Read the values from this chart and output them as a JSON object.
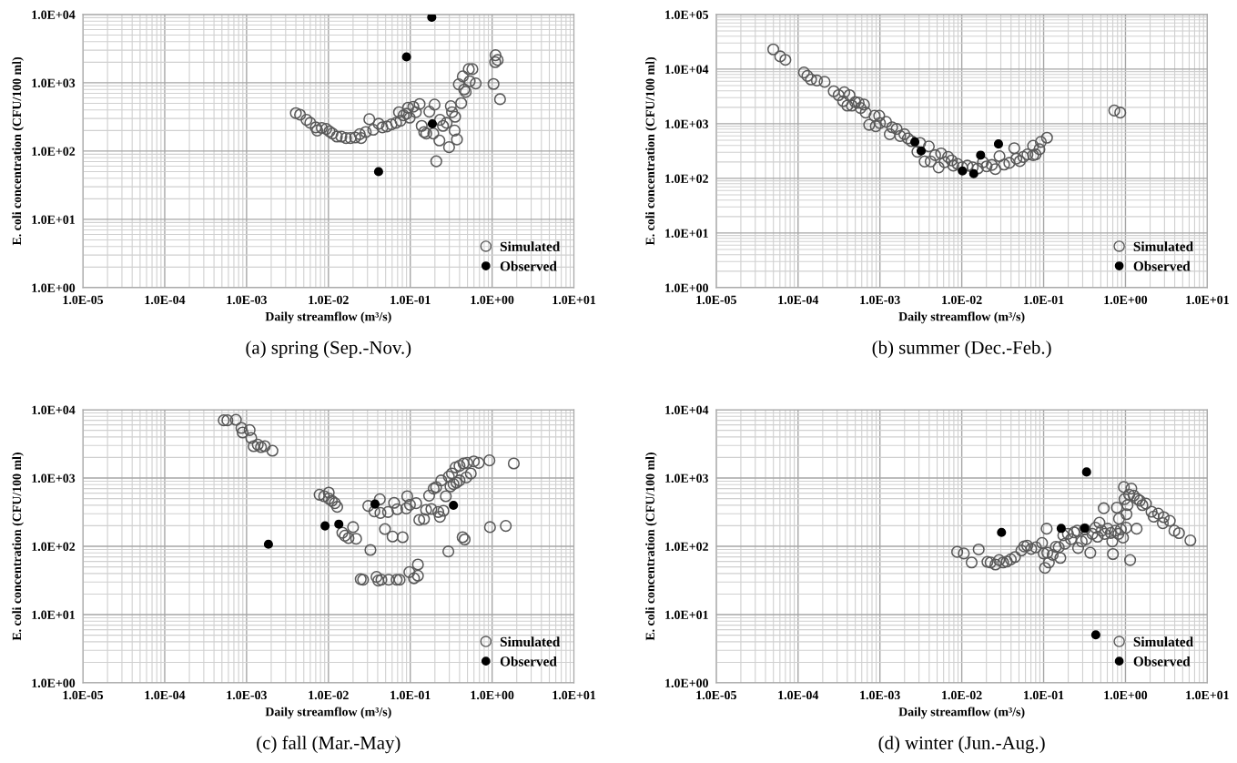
{
  "chart_data": [
    {
      "type": "scatter",
      "title": "(a) spring (Sep.-Nov.)",
      "xlabel": "Daily streamflow (m³/s)",
      "ylabel": "E. coli concentration (CFU/100 ml)",
      "log": "xy",
      "grid": true,
      "legend": "bottom right",
      "marker": "circle",
      "xlim": [
        1e-05,
        10
      ],
      "ylim": [
        1,
        10000
      ],
      "xticks": [
        {
          "value": 1e-05,
          "label": "1.0E-05"
        },
        {
          "value": 0.0001,
          "label": "1.0E-04"
        },
        {
          "value": 0.001,
          "label": "1.0E-03"
        },
        {
          "value": 0.01,
          "label": "1.0E-02"
        },
        {
          "value": 0.1,
          "label": "1.0E-01"
        },
        {
          "value": 1,
          "label": "1.0E+00"
        },
        {
          "value": 10,
          "label": "1.0E+01"
        }
      ],
      "yticks": [
        {
          "value": 1,
          "label": "1.0E+00"
        },
        {
          "value": 10,
          "label": "1.0E+01"
        },
        {
          "value": 100,
          "label": "1.0E+02"
        },
        {
          "value": 1000,
          "label": "1.0E+03"
        },
        {
          "value": 10000,
          "label": "1.0E+04"
        }
      ],
      "series": [
        {
          "name": "Simulated",
          "color": "#595959",
          "x": [
            0.004,
            0.0045,
            0.0054,
            0.006,
            0.007,
            0.0073,
            0.0083,
            0.0094,
            0.0103,
            0.0112,
            0.0127,
            0.0144,
            0.0164,
            0.0186,
            0.0212,
            0.0241,
            0.0251,
            0.0316,
            0.0286,
            0.0353,
            0.0412,
            0.0456,
            0.0519,
            0.0589,
            0.067,
            0.0729,
            0.076,
            0.0829,
            0.0903,
            0.0942,
            0.0984,
            0.109,
            0.117,
            0.13,
            0.138,
            0.148,
            0.157,
            0.171,
            0.198,
            0.191,
            0.208,
            0.227,
            0.231,
            0.251,
            0.278,
            0.298,
            0.313,
            0.324,
            0.348,
            0.353,
            0.372,
            0.392,
            0.419,
            0.438,
            0.456,
            0.476,
            0.519,
            0.532,
            0.574,
            0.631,
            1.04,
            1.1,
            1.09,
            1.17,
            1.25
          ],
          "values": [
            360,
            341,
            287,
            259,
            222,
            200,
            218,
            211,
            194,
            181,
            163,
            163,
            155,
            155,
            158,
            177,
            155,
            293,
            190,
            205,
            251,
            222,
            229,
            246,
            259,
            371,
            278,
            334,
            352,
            432,
            308,
            446,
            371,
            489,
            234,
            190,
            181,
            378,
            479,
            181,
            71,
            143,
            287,
            234,
            259,
            114,
            455,
            371,
            200,
            318,
            148,
            950,
            504,
            1240,
            798,
            736,
            1585,
            1052,
            1585,
            980,
            960,
            2535,
            2005,
            2154,
            575
          ]
        },
        {
          "name": "Observed",
          "color": "#000000",
          "x": [
            0.183,
            0.09,
            0.186,
            0.041
          ],
          "values": [
            9100,
            2390,
            251,
            50
          ]
        }
      ]
    },
    {
      "type": "scatter",
      "title": "(b) summer (Dec.-Feb.)",
      "xlabel": "Daily streamflow (m³/s)",
      "ylabel": "E. coli concentration (CFU/100 ml)",
      "log": "xy",
      "grid": true,
      "legend": "bottom right",
      "marker": "circle",
      "xlim": [
        1e-05,
        10
      ],
      "ylim": [
        1,
        100000
      ],
      "xticks": [
        {
          "value": 1e-05,
          "label": "1.0E-05"
        },
        {
          "value": 0.0001,
          "label": "1.0E-04"
        },
        {
          "value": 0.001,
          "label": "1.0E-03"
        },
        {
          "value": 0.01,
          "label": "1.0E-02"
        },
        {
          "value": 0.1,
          "label": "1.0E-01"
        },
        {
          "value": 1,
          "label": "1.0E+00"
        },
        {
          "value": 10,
          "label": "1.0E+01"
        }
      ],
      "yticks": [
        {
          "value": 1,
          "label": "1.0E+00"
        },
        {
          "value": 10,
          "label": "1.0E+01"
        },
        {
          "value": 100,
          "label": "1.0E+02"
        },
        {
          "value": 1000,
          "label": "1.0E+03"
        },
        {
          "value": 10000,
          "label": "1.0E+04"
        },
        {
          "value": 100000,
          "label": "1.0E+05"
        }
      ],
      "series": [
        {
          "name": "Simulated",
          "color": "#595959",
          "x": [
            4.98e-05,
            6.05e-05,
            7e-05,
            0.000118,
            0.00013,
            0.000144,
            0.00017,
            0.000211,
            0.000273,
            0.000313,
            0.000367,
            0.000356,
            0.0004,
            0.000425,
            0.000455,
            0.0005,
            0.00055,
            0.00058,
            0.00064,
            0.00067,
            0.00074,
            0.00086,
            0.00089,
            0.00098,
            0.001,
            0.00119,
            0.00132,
            0.00141,
            0.0016,
            0.00177,
            0.00199,
            0.0022,
            0.00243,
            0.00287,
            0.0031,
            0.00352,
            0.00396,
            0.00417,
            0.00473,
            0.00522,
            0.0056,
            0.00618,
            0.00681,
            0.00752,
            0.00789,
            0.00889,
            0.0101,
            0.0117,
            0.0136,
            0.0157,
            0.0182,
            0.0201,
            0.0233,
            0.0257,
            0.0289,
            0.0329,
            0.0381,
            0.0438,
            0.0465,
            0.0512,
            0.0565,
            0.0635,
            0.0744,
            0.0744,
            0.0798,
            0.0889,
            0.0925,
            0.11,
            0.73,
            0.863
          ],
          "values": [
            22960,
            17100,
            14800,
            8690,
            7500,
            6470,
            6190,
            5850,
            3930,
            3340,
            3760,
            2600,
            2150,
            3340,
            2150,
            2490,
            2420,
            1940,
            2240,
            1600,
            957,
            1400,
            902,
            1400,
            1030,
            1080,
            643,
            862,
            802,
            597,
            643,
            539,
            480,
            308,
            446,
            204,
            385,
            204,
            266,
            159,
            287,
            198,
            247,
            213,
            171,
            184,
            159,
            171,
            159,
            152,
            198,
            166,
            176,
            148,
            255,
            179,
            192,
            357,
            230,
            207,
            247,
            274,
            266,
            395,
            274,
            342,
            466,
            555,
            1750,
            1600
          ]
        },
        {
          "name": "Observed",
          "color": "#000000",
          "x": [
            0.00267,
            0.00319,
            0.0102,
            0.014,
            0.017,
            0.0281
          ],
          "values": [
            466,
            318,
            137,
            122,
            266,
            426
          ]
        }
      ]
    },
    {
      "type": "scatter",
      "title": "(c) fall (Mar.-May)",
      "xlabel": "Daily streamflow (m³/s)",
      "ylabel": "E. coli concentration (CFU/100 ml)",
      "log": "xy",
      "grid": true,
      "legend": "bottom right",
      "marker": "circle",
      "xlim": [
        1e-05,
        10
      ],
      "ylim": [
        1,
        10000
      ],
      "xticks": [
        {
          "value": 1e-05,
          "label": "1.0E-05"
        },
        {
          "value": 0.0001,
          "label": "1.0E-04"
        },
        {
          "value": 0.001,
          "label": "1.0E-03"
        },
        {
          "value": 0.01,
          "label": "1.0E-02"
        },
        {
          "value": 0.1,
          "label": "1.0E-01"
        },
        {
          "value": 1,
          "label": "1.0E+00"
        },
        {
          "value": 10,
          "label": "1.0E+01"
        }
      ],
      "yticks": [
        {
          "value": 1,
          "label": "1.0E+00"
        },
        {
          "value": 10,
          "label": "1.0E+01"
        },
        {
          "value": 100,
          "label": "1.0E+02"
        },
        {
          "value": 1000,
          "label": "1.0E+03"
        },
        {
          "value": 10000,
          "label": "1.0E+04"
        }
      ],
      "series": [
        {
          "name": "Simulated",
          "color": "#595959",
          "x": [
            0.000526,
            0.000583,
            0.000741,
            0.000865,
            0.000895,
            0.00109,
            0.00114,
            0.00122,
            0.00137,
            0.0015,
            0.00167,
            0.00207,
            0.0078,
            0.00887,
            0.0101,
            0.0101,
            0.011,
            0.012,
            0.0128,
            0.0148,
            0.0159,
            0.0176,
            0.02,
            0.0218,
            0.0248,
            0.0265,
            0.0307,
            0.0326,
            0.0364,
            0.0387,
            0.0407,
            0.0425,
            0.0444,
            0.0432,
            0.0491,
            0.0535,
            0.0545,
            0.0608,
            0.0635,
            0.0681,
            0.0692,
            0.0741,
            0.0807,
            0.0918,
            0.0895,
            0.0991,
            0.0975,
            0.111,
            0.118,
            0.124,
            0.124,
            0.129,
            0.147,
            0.156,
            0.17,
            0.181,
            0.193,
            0.207,
            0.22,
            0.23,
            0.239,
            0.254,
            0.272,
            0.292,
            0.296,
            0.31,
            0.323,
            0.337,
            0.358,
            0.367,
            0.4,
            0.4,
            0.436,
            0.448,
            0.462,
            0.483,
            0.496,
            0.549,
            0.598,
            0.686,
            0.927,
            0.942,
            1.47,
            1.84
          ],
          "values": [
            6990,
            6990,
            7130,
            5410,
            4640,
            5040,
            3860,
            2930,
            3080,
            2840,
            2930,
            2510,
            570,
            541,
            612,
            499,
            464,
            428,
            378,
            158,
            143,
            132,
            191,
            129,
            33,
            32.4,
            390,
            88.5,
            325,
            35.6,
            31.5,
            489,
            32.4,
            308,
            179,
            318,
            32.4,
            139,
            433,
            32.4,
            349,
            32.4,
            136,
            541,
            359,
            406,
            41.9,
            34.1,
            428,
            54.1,
            37.1,
            244,
            251,
            342,
            552,
            352,
            699,
            736,
            318,
            270,
            921,
            331,
            541,
            84,
            1052,
            752,
            1166,
            815,
            1432,
            858,
            1507,
            921,
            136,
            1635,
            126,
            1021,
            1667,
            1166,
            1754,
            1667,
            1812,
            191,
            199,
            1635
          ]
        },
        {
          "name": "Observed",
          "color": "#000000",
          "x": [
            0.00185,
            0.0091,
            0.0134,
            0.0371,
            0.337
          ],
          "values": [
            107,
            199,
            211,
            415,
            398
          ]
        }
      ]
    },
    {
      "type": "scatter",
      "title": "(d) winter (Jun.-Aug.)",
      "xlabel": "Daily streamflow (m³/s)",
      "ylabel": "E. coli concentration (CFU/100 ml)",
      "log": "xy",
      "grid": true,
      "legend": "bottom right",
      "marker": "circle",
      "xlim": [
        1e-05,
        10
      ],
      "ylim": [
        1,
        10000
      ],
      "xticks": [
        {
          "value": 1e-05,
          "label": "1.0E-05"
        },
        {
          "value": 0.0001,
          "label": "1.0E-04"
        },
        {
          "value": 0.001,
          "label": "1.0E-03"
        },
        {
          "value": 0.01,
          "label": "1.0E-02"
        },
        {
          "value": 0.1,
          "label": "1.0E-01"
        },
        {
          "value": 1,
          "label": "1.0E+00"
        },
        {
          "value": 10,
          "label": "1.0E+01"
        }
      ],
      "yticks": [
        {
          "value": 1,
          "label": "1.0E+00"
        },
        {
          "value": 10,
          "label": "1.0E+01"
        },
        {
          "value": 100,
          "label": "1.0E+02"
        },
        {
          "value": 1000,
          "label": "1.0E+03"
        },
        {
          "value": 10000,
          "label": "1.0E+04"
        }
      ],
      "series": [
        {
          "name": "Simulated",
          "color": "#595959",
          "x": [
            0.00879,
            0.0106,
            0.0132,
            0.0161,
            0.0206,
            0.0225,
            0.0258,
            0.0286,
            0.032,
            0.0355,
            0.0397,
            0.0447,
            0.0535,
            0.0579,
            0.0631,
            0.0706,
            0.0804,
            0.0957,
            0.1,
            0.104,
            0.109,
            0.111,
            0.116,
            0.129,
            0.141,
            0.153,
            0.16,
            0.174,
            0.182,
            0.198,
            0.216,
            0.236,
            0.257,
            0.264,
            0.292,
            0.318,
            0.332,
            0.372,
            0.394,
            0.43,
            0.457,
            0.481,
            0.511,
            0.543,
            0.557,
            0.607,
            0.662,
            0.703,
            0.69,
            0.753,
            0.786,
            0.82,
            0.834,
            0.879,
            0.933,
            0.957,
            0.975,
            1.02,
            1.03,
            1.06,
            1.11,
            1.14,
            1.18,
            1.26,
            1.37,
            1.4,
            1.5,
            1.61,
            1.78,
            2.08,
            2.21,
            2.51,
            2.86,
            2.93,
            3.48,
            3.96,
            4.51,
            6.21
          ],
          "values": [
            82.8,
            78.7,
            58,
            89.9,
            59.3,
            58,
            54.1,
            63,
            58,
            59.8,
            64.3,
            69.7,
            87,
            99.5,
            102,
            91.6,
            96.5,
            112,
            78.7,
            48.3,
            181,
            80.4,
            58,
            74.8,
            98.4,
            96.5,
            67.6,
            145,
            109,
            152,
            127,
            160,
            169,
            94.6,
            118,
            177,
            127,
            80.4,
            152,
            187,
            138,
            222,
            169,
            361,
            152,
            181,
            157,
            77.1,
            118,
            169,
            369,
            152,
            254,
            177,
            134,
            738,
            491,
            187,
            295,
            401,
            571,
            63,
            700,
            554,
            181,
            491,
            467,
            401,
            422,
            321,
            272,
            301,
            218,
            267,
            236,
            169,
            156,
            122
          ]
        },
        {
          "name": "Observed",
          "color": "#000000",
          "x": [
            0.0306,
            0.164,
            0.318,
            0.335,
            0.434
          ],
          "values": [
            160,
            183,
            183,
            1225,
            5.06
          ]
        }
      ]
    }
  ]
}
